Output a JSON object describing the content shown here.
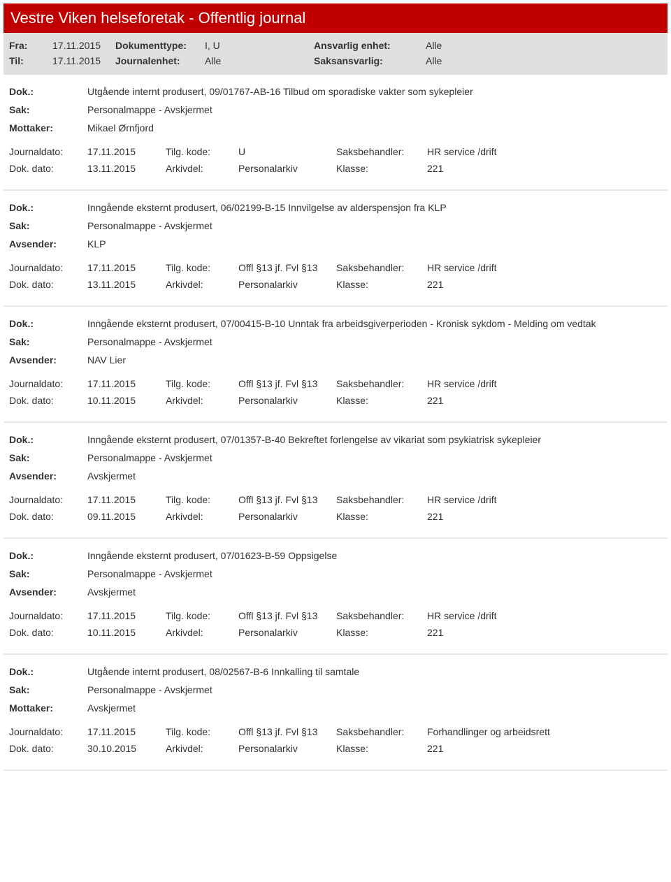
{
  "title": "Vestre Viken helseforetak - Offentlig journal",
  "filters": {
    "fra_label": "Fra:",
    "fra_value": "17.11.2015",
    "til_label": "Til:",
    "til_value": "17.11.2015",
    "doktype_label": "Dokumenttype:",
    "doktype_value": "I, U",
    "journalenhet_label": "Journalenhet:",
    "journalenhet_value": "Alle",
    "ansvarlig_label": "Ansvarlig enhet:",
    "ansvarlig_value": "Alle",
    "saksansvarlig_label": "Saksansvarlig:",
    "saksansvarlig_value": "Alle"
  },
  "labels": {
    "dok": "Dok.:",
    "sak": "Sak:",
    "mottaker": "Mottaker:",
    "avsender": "Avsender:",
    "journaldato": "Journaldato:",
    "dokdato": "Dok. dato:",
    "tilgkode": "Tilg. kode:",
    "arkivdel": "Arkivdel:",
    "saksbehandler": "Saksbehandler:",
    "klasse": "Klasse:"
  },
  "records": [
    {
      "dok": "Utgående internt produsert, 09/01767-AB-16 Tilbud om sporadiske vakter som sykepleier",
      "sak": "Personalmappe - Avskjermet",
      "party_label": "Mottaker:",
      "party_value": "Mikael Ørnfjord",
      "journaldato": "17.11.2015",
      "dokdato": "13.11.2015",
      "tilgkode": "U",
      "arkivdel": "Personalarkiv",
      "saksbehandler": "HR service /drift",
      "klasse": "221"
    },
    {
      "dok": "Inngående eksternt produsert, 06/02199-B-15 Innvilgelse av alderspensjon fra KLP",
      "sak": "Personalmappe - Avskjermet",
      "party_label": "Avsender:",
      "party_value": "KLP",
      "journaldato": "17.11.2015",
      "dokdato": "13.11.2015",
      "tilgkode": "Offl §13 jf. Fvl §13",
      "arkivdel": "Personalarkiv",
      "saksbehandler": "HR service /drift",
      "klasse": "221"
    },
    {
      "dok": "Inngående eksternt produsert, 07/00415-B-10 Unntak fra arbeidsgiverperioden - Kronisk sykdom - Melding om vedtak",
      "sak": "Personalmappe - Avskjermet",
      "party_label": "Avsender:",
      "party_value": "NAV Lier",
      "journaldato": "17.11.2015",
      "dokdato": "10.11.2015",
      "tilgkode": "Offl §13 jf. Fvl §13",
      "arkivdel": "Personalarkiv",
      "saksbehandler": "HR service /drift",
      "klasse": "221"
    },
    {
      "dok": "Inngående eksternt produsert, 07/01357-B-40 Bekreftet forlengelse av vikariat som psykiatrisk sykepleier",
      "sak": "Personalmappe - Avskjermet",
      "party_label": "Avsender:",
      "party_value": "Avskjermet",
      "journaldato": "17.11.2015",
      "dokdato": "09.11.2015",
      "tilgkode": "Offl §13 jf. Fvl §13",
      "arkivdel": "Personalarkiv",
      "saksbehandler": "HR service /drift",
      "klasse": "221"
    },
    {
      "dok": "Inngående eksternt produsert, 07/01623-B-59 Oppsigelse",
      "sak": "Personalmappe - Avskjermet",
      "party_label": "Avsender:",
      "party_value": "Avskjermet",
      "journaldato": "17.11.2015",
      "dokdato": "10.11.2015",
      "tilgkode": "Offl §13 jf. Fvl §13",
      "arkivdel": "Personalarkiv",
      "saksbehandler": "HR service /drift",
      "klasse": "221"
    },
    {
      "dok": "Utgående internt produsert, 08/02567-B-6 Innkalling til samtale",
      "sak": "Personalmappe - Avskjermet",
      "party_label": "Mottaker:",
      "party_value": "Avskjermet",
      "journaldato": "17.11.2015",
      "dokdato": "30.10.2015",
      "tilgkode": "Offl §13 jf. Fvl §13",
      "arkivdel": "Personalarkiv",
      "saksbehandler": "Forhandlinger og arbeidsrett",
      "klasse": "221"
    }
  ]
}
